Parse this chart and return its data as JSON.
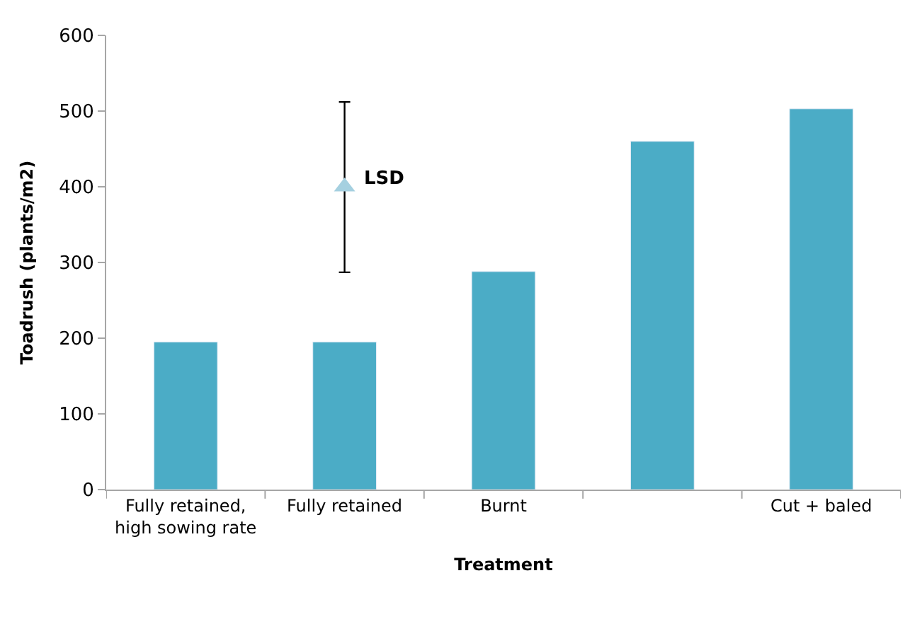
{
  "chart_data": {
    "type": "bar",
    "xlabel": "Treatment",
    "ylabel": "Toadrush (plants/m2)",
    "categories": [
      "Fully retained, high sowing rate",
      "Fully retained",
      "Burnt",
      null,
      "Cut + baled"
    ],
    "series": [
      {
        "color": "#4bacc6",
        "values": [
          195,
          195,
          288,
          460,
          503
        ]
      },
      {
        "type": "scatter",
        "color": "#a5d0e0",
        "x": [
          "Fully retained"
        ],
        "values": [
          400
        ],
        "errors": [
          [
            287,
            512
          ]
        ],
        "marker": "triangle"
      }
    ],
    "annotations": [
      {
        "text": "LSD",
        "x": "Fully retained",
        "y": 400
      }
    ],
    "ylim": [
      0,
      600
    ],
    "yticks": [
      0,
      100,
      200,
      300,
      400,
      500,
      600
    ]
  }
}
